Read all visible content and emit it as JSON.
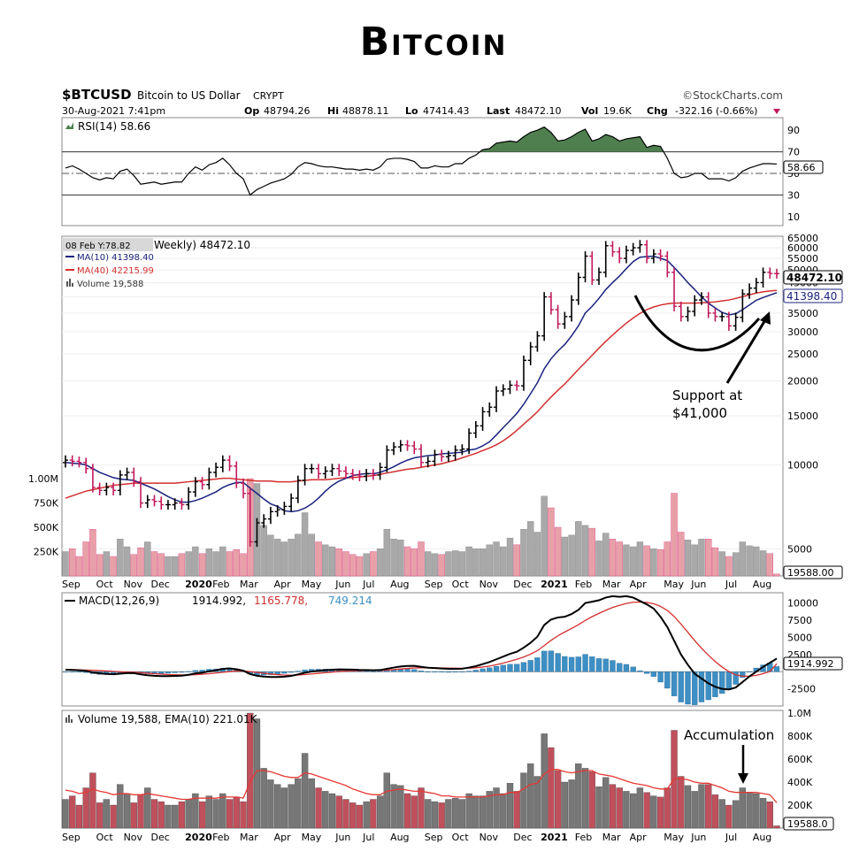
{
  "page": {
    "title": "Bitcoin"
  },
  "header": {
    "symbol": "$BTCUSD",
    "name": "Bitcoin to US Dollar",
    "exchange": "CRYPT",
    "copyright": "©StockCharts.com",
    "datetime": "30-Aug-2021 7:41pm",
    "op_label": "Op",
    "op": "48794.26",
    "hi_label": "Hi",
    "hi": "48878.11",
    "lo_label": "Lo",
    "lo": "47414.43",
    "last_label": "Last",
    "last": "48472.10",
    "vol_label": "Vol",
    "vol": "19.6K",
    "chg_label": "Chg",
    "chg": "-322.16 (-0.66%)"
  },
  "colors": {
    "up": "#000000",
    "down": "#c2185b",
    "ma10": "#1a237e",
    "ma40": "#d32f2f",
    "rsi_fill": "#4f7f4f",
    "macd_hist": "#3d8fc4",
    "vol_up": "#a9a9a9",
    "vol_down": "#e8a0a8"
  },
  "rsi_panel": {
    "legend": "RSI(14) 58.66",
    "value_tag": "58.66",
    "ticks": [
      "90",
      "70",
      "50",
      "30",
      "10"
    ]
  },
  "price_panel": {
    "legend_title": "Weekly) 48472.10",
    "date_tag": "08 Feb Y:78.82",
    "ma10_legend": "MA(10) 41398.40",
    "ma40_legend": "MA(40) 42215.99",
    "volume_legend": "Volume 19,588",
    "last_tag": "48472.10",
    "ma10_tag": "41398.40",
    "volume_tag": "19588.00",
    "ticks": [
      "65000",
      "60000",
      "55000",
      "50000",
      "45000",
      "40000",
      "35000",
      "30000",
      "25000",
      "20000",
      "15000",
      "10000",
      "5000"
    ],
    "volume_ticks": [
      "1.00M",
      "750K",
      "500K",
      "250K"
    ],
    "annotation_line1": "Support at",
    "annotation_line2": "$41,000"
  },
  "macd_panel": {
    "legend_name": "MACD(12,26,9)",
    "legend_macd": "1914.992,",
    "legend_signal": "1165.778,",
    "legend_hist": "749.214",
    "value_tag": "1914.992",
    "ticks": [
      "10000",
      "7500",
      "5000",
      "2500",
      "-2500"
    ]
  },
  "volume_panel": {
    "legend": "Volume 19,588, EMA(10) 221.01K",
    "annotation": "Accumulation",
    "value_tag": "19588.0",
    "ticks": [
      "1.0M",
      "800K",
      "600K",
      "400K",
      "200K"
    ]
  },
  "x_axis": {
    "labels": [
      "Sep",
      "Oct",
      "Nov",
      "Dec",
      "2020",
      "Feb",
      "Mar",
      "Apr",
      "May",
      "Jun",
      "Jul",
      "Aug",
      "Sep",
      "Oct",
      "Nov",
      "Dec",
      "2021",
      "Feb",
      "Mar",
      "Apr",
      "May",
      "Jun",
      "Jul",
      "Aug"
    ]
  },
  "chart_data": {
    "type": "candlestick",
    "timeframe": "Weekly",
    "price_scale": "log",
    "price_ylim": [
      4000,
      66000
    ],
    "x": [
      "2019-09-01",
      "2019-09-08",
      "2019-09-15",
      "2019-09-22",
      "2019-09-29",
      "2019-10-06",
      "2019-10-13",
      "2019-10-20",
      "2019-10-27",
      "2019-11-03",
      "2019-11-10",
      "2019-11-17",
      "2019-11-24",
      "2019-12-01",
      "2019-12-08",
      "2019-12-15",
      "2019-12-22",
      "2019-12-29",
      "2020-01-05",
      "2020-01-12",
      "2020-01-19",
      "2020-01-26",
      "2020-02-02",
      "2020-02-09",
      "2020-02-16",
      "2020-02-23",
      "2020-03-01",
      "2020-03-08",
      "2020-03-15",
      "2020-03-22",
      "2020-03-29",
      "2020-04-05",
      "2020-04-12",
      "2020-04-19",
      "2020-04-26",
      "2020-05-03",
      "2020-05-10",
      "2020-05-17",
      "2020-05-24",
      "2020-05-31",
      "2020-06-07",
      "2020-06-14",
      "2020-06-21",
      "2020-06-28",
      "2020-07-05",
      "2020-07-12",
      "2020-07-19",
      "2020-07-26",
      "2020-08-02",
      "2020-08-09",
      "2020-08-16",
      "2020-08-23",
      "2020-08-30",
      "2020-09-06",
      "2020-09-13",
      "2020-09-20",
      "2020-09-27",
      "2020-10-04",
      "2020-10-11",
      "2020-10-18",
      "2020-10-25",
      "2020-11-01",
      "2020-11-08",
      "2020-11-15",
      "2020-11-22",
      "2020-11-29",
      "2020-12-06",
      "2020-12-13",
      "2020-12-20",
      "2020-12-27",
      "2021-01-03",
      "2021-01-10",
      "2021-01-17",
      "2021-01-24",
      "2021-01-31",
      "2021-02-07",
      "2021-02-14",
      "2021-02-21",
      "2021-02-28",
      "2021-03-07",
      "2021-03-14",
      "2021-03-21",
      "2021-03-28",
      "2021-04-04",
      "2021-04-11",
      "2021-04-18",
      "2021-04-25",
      "2021-05-02",
      "2021-05-09",
      "2021-05-16",
      "2021-05-23",
      "2021-05-30",
      "2021-06-06",
      "2021-06-13",
      "2021-06-20",
      "2021-06-27",
      "2021-07-04",
      "2021-07-11",
      "2021-07-18",
      "2021-07-25",
      "2021-08-01",
      "2021-08-08",
      "2021-08-15",
      "2021-08-22",
      "2021-08-29"
    ],
    "close": [
      10400,
      10300,
      10200,
      9700,
      8300,
      8100,
      8300,
      8100,
      9200,
      9400,
      8700,
      7300,
      7500,
      7400,
      7200,
      7200,
      7300,
      7200,
      8000,
      8700,
      8500,
      9400,
      9800,
      10400,
      9900,
      8600,
      7900,
      5300,
      6200,
      6400,
      6800,
      6900,
      7100,
      7600,
      8800,
      9700,
      9700,
      9300,
      9500,
      9700,
      9500,
      9300,
      9200,
      9100,
      9300,
      9200,
      9800,
      11300,
      11600,
      11800,
      11700,
      11400,
      10200,
      10300,
      10900,
      10700,
      10800,
      11300,
      11400,
      13000,
      13800,
      15500,
      16100,
      18400,
      18700,
      19300,
      19200,
      23700,
      26500,
      29000,
      40000,
      36000,
      32000,
      34000,
      39000,
      47000,
      56000,
      46000,
      49000,
      61000,
      58000,
      55000,
      58700,
      60000,
      61500,
      55000,
      57000,
      56000,
      49000,
      37000,
      34000,
      35500,
      39000,
      40000,
      35000,
      34000,
      34000,
      31500,
      33800,
      41000,
      43000,
      45000,
      49000,
      48500,
      48472
    ],
    "ma10": [
      10200,
      10150,
      10100,
      10000,
      9700,
      9400,
      9200,
      9000,
      8900,
      8850,
      8800,
      8600,
      8400,
      8200,
      7950,
      7700,
      7500,
      7350,
      7350,
      7450,
      7600,
      7800,
      8000,
      8300,
      8500,
      8650,
      8650,
      8250,
      7900,
      7550,
      7250,
      7100,
      6850,
      6800,
      6850,
      7000,
      7250,
      7600,
      8050,
      8450,
      8750,
      8950,
      9150,
      9250,
      9300,
      9300,
      9400,
      9600,
      9850,
      10150,
      10400,
      10600,
      10700,
      10800,
      10850,
      10950,
      11000,
      11050,
      11100,
      11300,
      11400,
      11700,
      12100,
      12800,
      13600,
      14400,
      15300,
      16500,
      18000,
      19700,
      22100,
      24000,
      25600,
      27000,
      29000,
      31500,
      35000,
      37000,
      39500,
      42500,
      45000,
      47500,
      50500,
      53500,
      55500,
      55800,
      56000,
      55000,
      54000,
      51000,
      48000,
      45000,
      42500,
      40000,
      38000,
      36500,
      35200,
      34500,
      34800,
      36000,
      37400,
      38900,
      39800,
      40600,
      41398
    ],
    "ma40": [
      7600,
      7750,
      7900,
      8050,
      8150,
      8250,
      8350,
      8450,
      8500,
      8550,
      8600,
      8600,
      8600,
      8600,
      8600,
      8600,
      8600,
      8650,
      8700,
      8750,
      8800,
      8850,
      8900,
      8950,
      8950,
      8900,
      8850,
      8800,
      8750,
      8750,
      8750,
      8700,
      8700,
      8700,
      8750,
      8800,
      8850,
      8850,
      8850,
      8900,
      8950,
      9000,
      9000,
      9050,
      9100,
      9150,
      9250,
      9350,
      9450,
      9550,
      9650,
      9700,
      9800,
      9900,
      10000,
      10100,
      10250,
      10400,
      10600,
      10800,
      11000,
      11250,
      11500,
      11800,
      12200,
      12700,
      13300,
      14000,
      14700,
      15500,
      16500,
      17500,
      18500,
      19500,
      20700,
      22000,
      23300,
      24700,
      26200,
      27700,
      29200,
      30700,
      32200,
      33600,
      34900,
      36000,
      36800,
      37400,
      37800,
      38000,
      38000,
      38000,
      38000,
      38100,
      38200,
      38400,
      38700,
      39000,
      39500,
      40100,
      40700,
      41300,
      41700,
      42000,
      42216
    ],
    "rsi": [
      55,
      57,
      54,
      50,
      46,
      44,
      46,
      45,
      52,
      54,
      48,
      40,
      41,
      42,
      40,
      41,
      42,
      42,
      50,
      56,
      53,
      58,
      60,
      64,
      58,
      50,
      45,
      30,
      35,
      38,
      41,
      43,
      45,
      49,
      56,
      60,
      59,
      57,
      56,
      56,
      55,
      54,
      54,
      53,
      54,
      53,
      56,
      63,
      64,
      64,
      63,
      61,
      55,
      55,
      57,
      56,
      56,
      59,
      59,
      64,
      67,
      72,
      73,
      78,
      79,
      80,
      79,
      84,
      88,
      90,
      93,
      88,
      80,
      81,
      84,
      88,
      91,
      80,
      82,
      86,
      84,
      80,
      82,
      83,
      84,
      74,
      76,
      75,
      64,
      50,
      46,
      47,
      50,
      50,
      45,
      45,
      45,
      43,
      46,
      52,
      55,
      57,
      59,
      59,
      58.66
    ],
    "macd": [
      280,
      250,
      200,
      100,
      -100,
      -250,
      -320,
      -380,
      -300,
      -200,
      -220,
      -400,
      -520,
      -600,
      -650,
      -650,
      -620,
      -580,
      -450,
      -250,
      -150,
      50,
      200,
      400,
      480,
      350,
      150,
      -350,
      -600,
      -720,
      -780,
      -780,
      -730,
      -620,
      -400,
      -150,
      20,
      120,
      220,
      280,
      330,
      320,
      300,
      250,
      230,
      200,
      230,
      420,
      600,
      750,
      830,
      850,
      700,
      580,
      520,
      470,
      420,
      420,
      430,
      600,
      800,
      1100,
      1400,
      1800,
      2200,
      2600,
      2900,
      3500,
      4200,
      5100,
      6800,
      7600,
      7900,
      8000,
      8400,
      9000,
      10000,
      10200,
      10400,
      10800,
      11000,
      10900,
      11000,
      10800,
      10300,
      9800,
      9200,
      8000,
      6500,
      4500,
      2500,
      1000,
      -300,
      -1000,
      -1700,
      -2200,
      -2500,
      -2600,
      -2300,
      -1500,
      -700,
      0,
      700,
      1300,
      1915
    ],
    "signal": [
      300,
      290,
      270,
      240,
      200,
      150,
      100,
      40,
      -20,
      -60,
      -90,
      -150,
      -220,
      -290,
      -360,
      -420,
      -460,
      -480,
      -480,
      -440,
      -380,
      -300,
      -200,
      -90,
      20,
      90,
      100,
      10,
      -110,
      -230,
      -340,
      -430,
      -490,
      -510,
      -490,
      -420,
      -330,
      -240,
      -150,
      -60,
      20,
      80,
      130,
      150,
      170,
      170,
      180,
      230,
      300,
      390,
      470,
      540,
      570,
      570,
      560,
      540,
      520,
      500,
      490,
      510,
      570,
      680,
      820,
      1010,
      1250,
      1520,
      1800,
      2140,
      2550,
      3060,
      3800,
      4560,
      5230,
      5780,
      6300,
      6840,
      7470,
      8020,
      8490,
      8950,
      9360,
      9670,
      9940,
      10110,
      10150,
      10080,
      9900,
      9520,
      8920,
      8040,
      6930,
      5740,
      4530,
      3420,
      2400,
      1480,
      680,
      20,
      -450,
      -660,
      -670,
      -540,
      -290,
      30,
      1166
    ],
    "hist_latest": 749.214,
    "volume": [
      250000,
      280000,
      200000,
      350000,
      480000,
      220000,
      250000,
      200000,
      380000,
      300000,
      220000,
      290000,
      350000,
      250000,
      230000,
      200000,
      200000,
      230000,
      250000,
      300000,
      230000,
      280000,
      250000,
      300000,
      250000,
      270000,
      230000,
      1000000,
      950000,
      520000,
      420000,
      380000,
      350000,
      380000,
      430000,
      650000,
      430000,
      350000,
      320000,
      300000,
      280000,
      250000,
      220000,
      200000,
      230000,
      250000,
      280000,
      480000,
      380000,
      370000,
      300000,
      280000,
      350000,
      250000,
      230000,
      220000,
      250000,
      260000,
      250000,
      300000,
      280000,
      280000,
      320000,
      350000,
      300000,
      390000,
      320000,
      480000,
      560000,
      450000,
      820000,
      700000,
      500000,
      400000,
      420000,
      560000,
      520000,
      490000,
      360000,
      440000,
      380000,
      350000,
      320000,
      300000,
      350000,
      310000,
      280000,
      270000,
      350000,
      850000,
      450000,
      370000,
      320000,
      380000,
      380000,
      290000,
      250000,
      200000,
      240000,
      350000,
      310000,
      300000,
      260000,
      230000,
      19588
    ],
    "volume_ema10": [
      330000,
      320000,
      300000,
      310000,
      340000,
      320000,
      310000,
      290000,
      300000,
      300000,
      290000,
      290000,
      300000,
      290000,
      280000,
      270000,
      260000,
      250000,
      250000,
      260000,
      260000,
      260000,
      260000,
      270000,
      270000,
      270000,
      260000,
      400000,
      500000,
      500000,
      490000,
      470000,
      450000,
      440000,
      440000,
      480000,
      470000,
      450000,
      430000,
      410000,
      390000,
      370000,
      340000,
      320000,
      300000,
      290000,
      290000,
      320000,
      330000,
      340000,
      330000,
      320000,
      320000,
      310000,
      300000,
      280000,
      280000,
      270000,
      270000,
      270000,
      270000,
      270000,
      280000,
      290000,
      290000,
      310000,
      310000,
      340000,
      380000,
      390000,
      470000,
      510000,
      510000,
      490000,
      480000,
      490000,
      500000,
      500000,
      470000,
      460000,
      450000,
      430000,
      410000,
      390000,
      380000,
      370000,
      350000,
      340000,
      340000,
      430000,
      430000,
      420000,
      400000,
      390000,
      390000,
      370000,
      350000,
      320000,
      310000,
      310000,
      310000,
      310000,
      300000,
      290000,
      221010
    ]
  }
}
